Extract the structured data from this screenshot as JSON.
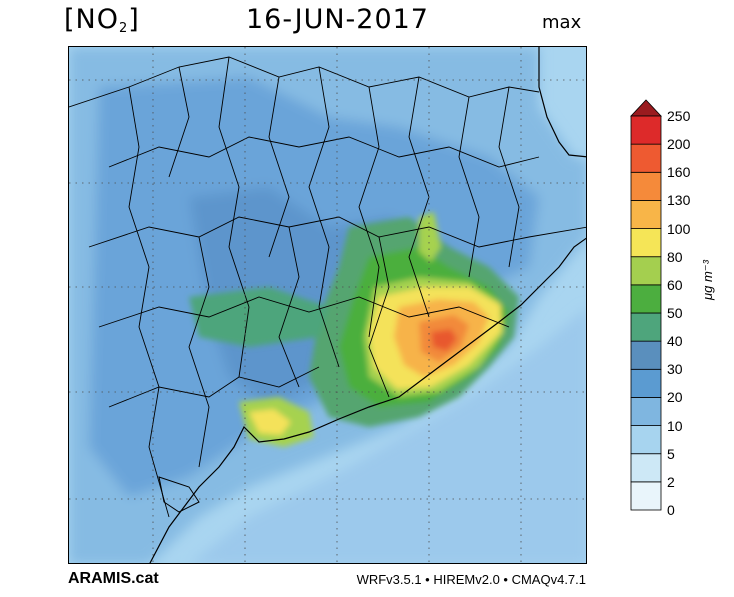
{
  "title": {
    "pollutant_main": "[NO",
    "pollutant_sub": "2",
    "pollutant_close": "]",
    "date": "16-JUN-2017",
    "statistic": "max"
  },
  "footer": {
    "left": "ARAMIS.cat",
    "right": "WRFv3.5.1 • HIREMv2.0 • CMAQv4.7.1"
  },
  "legend": {
    "unit": "μg m⁻³",
    "levels": [
      "0",
      "2",
      "5",
      "10",
      "20",
      "30",
      "40",
      "50",
      "60",
      "80",
      "100",
      "130",
      "160",
      "200",
      "250"
    ],
    "colors": [
      "#e9f5fb",
      "#cde8f6",
      "#a7d4ef",
      "#7fb6e0",
      "#5b9bd1",
      "#5a8fbd",
      "#4ea57c",
      "#4cae3f",
      "#a4cf4f",
      "#f5e557",
      "#f8b548",
      "#f58a3a",
      "#ee5a31",
      "#dd2a2a",
      "#b51e23"
    ],
    "top_color": "#9a1b1f"
  },
  "colors": {
    "sea": "#8fc3e8",
    "land_base": "#7fb6e0",
    "boundary": "#000000",
    "grid": "#4d4d4d"
  }
}
